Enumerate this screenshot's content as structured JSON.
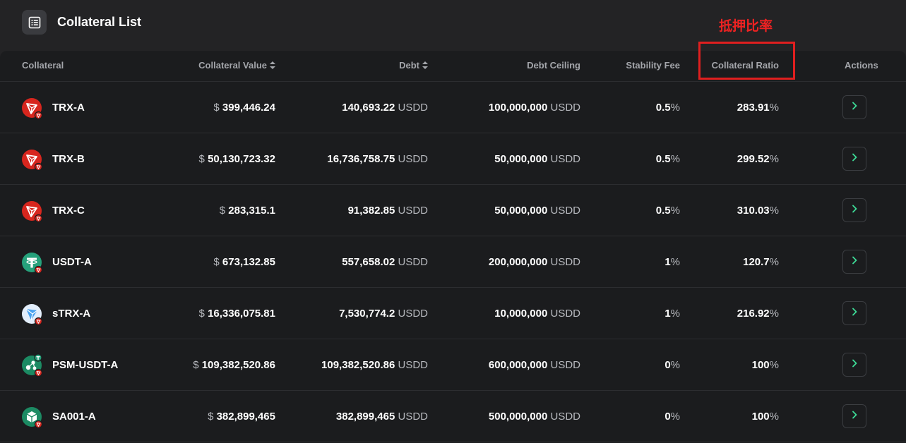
{
  "header": {
    "title": "Collateral List",
    "icon": "list-icon"
  },
  "annotation": {
    "label": "抵押比率",
    "color": "#e01f1f"
  },
  "columns": {
    "collateral": "Collateral",
    "collateral_value": "Collateral Value",
    "debt": "Debt",
    "debt_ceiling": "Debt Ceiling",
    "stability_fee": "Stability Fee",
    "collateral_ratio": "Collateral Ratio",
    "actions": "Actions"
  },
  "rows": [
    {
      "name": "TRX-A",
      "icon": "trx-icon",
      "currency": "$",
      "value": "399,446.24",
      "debt": "140,693.22",
      "debt_unit": "USDD",
      "ceiling": "100,000,000",
      "ceiling_unit": "USDD",
      "fee": "0.5",
      "ratio": "283.91"
    },
    {
      "name": "TRX-B",
      "icon": "trx-icon",
      "currency": "$",
      "value": "50,130,723.32",
      "debt": "16,736,758.75",
      "debt_unit": "USDD",
      "ceiling": "50,000,000",
      "ceiling_unit": "USDD",
      "fee": "0.5",
      "ratio": "299.52"
    },
    {
      "name": "TRX-C",
      "icon": "trx-icon",
      "currency": "$",
      "value": "283,315.1",
      "debt": "91,382.85",
      "debt_unit": "USDD",
      "ceiling": "50,000,000",
      "ceiling_unit": "USDD",
      "fee": "0.5",
      "ratio": "310.03"
    },
    {
      "name": "USDT-A",
      "icon": "usdt-icon",
      "currency": "$",
      "value": "673,132.85",
      "debt": "557,658.02",
      "debt_unit": "USDD",
      "ceiling": "200,000,000",
      "ceiling_unit": "USDD",
      "fee": "1",
      "ratio": "120.7"
    },
    {
      "name": "sTRX-A",
      "icon": "strx-icon",
      "currency": "$",
      "value": "16,336,075.81",
      "debt": "7,530,774.2",
      "debt_unit": "USDD",
      "ceiling": "10,000,000",
      "ceiling_unit": "USDD",
      "fee": "1",
      "ratio": "216.92"
    },
    {
      "name": "PSM-USDT-A",
      "icon": "psm-icon",
      "currency": "$",
      "value": "109,382,520.86",
      "debt": "109,382,520.86",
      "debt_unit": "USDD",
      "ceiling": "600,000,000",
      "ceiling_unit": "USDD",
      "fee": "0",
      "ratio": "100"
    },
    {
      "name": "SA001-A",
      "icon": "sa001-icon",
      "currency": "$",
      "value": "382,899,465",
      "debt": "382,899,465",
      "debt_unit": "USDD",
      "ceiling": "500,000,000",
      "ceiling_unit": "USDD",
      "fee": "0",
      "ratio": "100"
    }
  ],
  "percent_sign": "%",
  "colors": {
    "background": "#232325",
    "table_background": "#1b1c1e",
    "trx_red": "#d7261e",
    "usdt_green": "#26a17b",
    "psm_green": "#1c8a63",
    "accent_green": "#3ddc97"
  }
}
